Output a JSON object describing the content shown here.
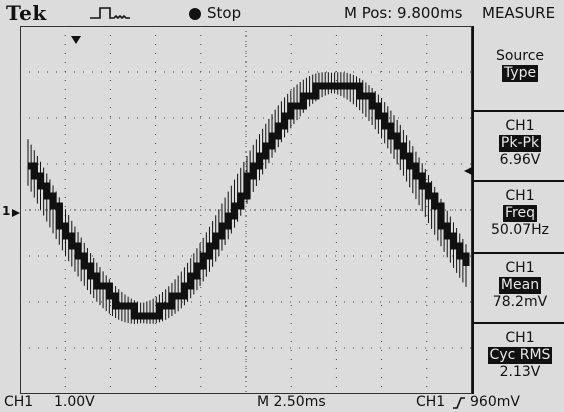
{
  "topbar": {
    "brand": "Tek",
    "trigger_icon": "pulse-trigger-icon",
    "run_state": "Stop",
    "m_pos": "M Pos: 9.800ms",
    "menu_title": "MEASURE"
  },
  "menu": {
    "source_label": "Source",
    "type_label": "Type",
    "measurements": [
      {
        "channel": "CH1",
        "type": "Pk-Pk",
        "value": "6.96V"
      },
      {
        "channel": "CH1",
        "type": "Freq",
        "value": "50.07Hz"
      },
      {
        "channel": "CH1",
        "type": "Mean",
        "value": "78.2mV"
      },
      {
        "channel": "CH1",
        "type": "Cyc RMS",
        "value": "2.13V"
      }
    ]
  },
  "markers": {
    "ch1_ref": "1"
  },
  "bottombar": {
    "ch1_label": "CH1",
    "ch1_scale": "1.00V",
    "timebase": "M 2.50ms",
    "trig_source": "CH1",
    "trig_slope_icon": "rising-edge-icon",
    "trig_level": "960mV"
  },
  "colors": {
    "background": "#dcdcdc",
    "trace": "#111111",
    "highlight": "#111111"
  }
}
